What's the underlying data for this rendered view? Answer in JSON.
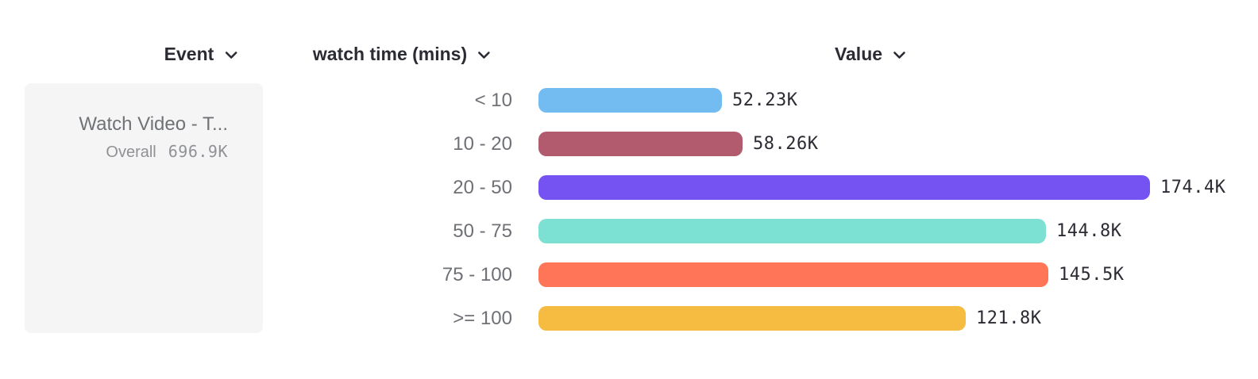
{
  "header": {
    "columns": [
      {
        "label": "Event",
        "icon": "chevron-down-icon"
      },
      {
        "label": "watch time (mins)",
        "icon": "chevron-down-icon"
      },
      {
        "label": "Value",
        "icon": "chevron-down-icon"
      }
    ]
  },
  "event_card": {
    "title": "Watch Video - T...",
    "overall_label": "Overall",
    "overall_value": "696.9K"
  },
  "chart_data": {
    "type": "bar",
    "orientation": "horizontal",
    "title": "",
    "xlabel": "Value",
    "ylabel": "watch time (mins)",
    "categories": [
      "< 10",
      "10 - 20",
      "20 - 50",
      "50 - 75",
      "75 - 100",
      ">= 100"
    ],
    "values": [
      52230,
      58260,
      174400,
      144800,
      145500,
      121800
    ],
    "value_labels": [
      "52.23K",
      "58.26K",
      "174.4K",
      "144.8K",
      "145.5K",
      "121.8K"
    ],
    "bar_colors": [
      "#73BCF2",
      "#B25A6E",
      "#7553F2",
      "#7CE0D3",
      "#FF7557",
      "#F5BC41"
    ],
    "grid": false,
    "legend": false,
    "xlim": [
      0,
      174400
    ]
  },
  "colors": {
    "header_text": "#2B2B33",
    "category_text": "#6E7076",
    "value_text": "#2B2B33",
    "card_bg": "#F5F5F6",
    "card_text": "#6F7276",
    "overall_text": "#8F9194"
  }
}
